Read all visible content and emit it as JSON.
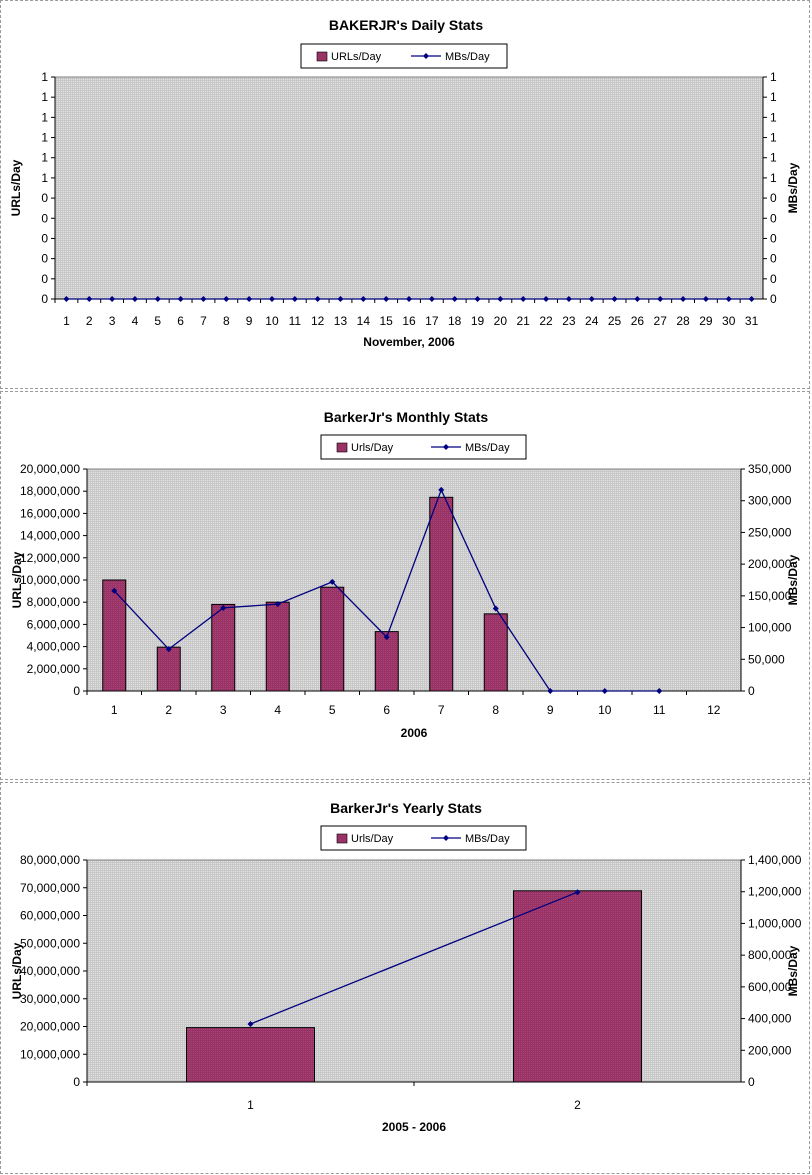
{
  "chart_data": [
    {
      "type": "bar",
      "title": "BAKERJR's Daily Stats",
      "xlabel": "November, 2006",
      "ylabel": "URLs/Day",
      "ylabel_right": "MBs/Day",
      "categories": [
        "1",
        "2",
        "3",
        "4",
        "5",
        "6",
        "7",
        "8",
        "9",
        "10",
        "11",
        "12",
        "13",
        "14",
        "15",
        "16",
        "17",
        "18",
        "19",
        "20",
        "21",
        "22",
        "23",
        "24",
        "25",
        "26",
        "27",
        "28",
        "29",
        "30",
        "31"
      ],
      "yticks": [
        "0",
        "0",
        "0",
        "0",
        "0",
        "0",
        "1",
        "1",
        "1",
        "1",
        "1",
        "1"
      ],
      "yticks_right": [
        "0",
        "0",
        "0",
        "0",
        "0",
        "0",
        "1",
        "1",
        "1",
        "1",
        "1",
        "1"
      ],
      "ylim": [
        0,
        1
      ],
      "ylim_right": [
        0,
        1
      ],
      "series": [
        {
          "name": "URLs/Day",
          "kind": "bar",
          "axis": "left",
          "color": "#993366",
          "values": [
            0,
            0,
            0,
            0,
            0,
            0,
            0,
            0,
            0,
            0,
            0,
            0,
            0,
            0,
            0,
            0,
            0,
            0,
            0,
            0,
            0,
            0,
            0,
            0,
            0,
            0,
            0,
            0,
            0,
            0,
            0
          ]
        },
        {
          "name": "MBs/Day",
          "kind": "line",
          "axis": "right",
          "color": "#000080",
          "values": [
            0,
            0,
            0,
            0,
            0,
            0,
            0,
            0,
            0,
            0,
            0,
            0,
            0,
            0,
            0,
            0,
            0,
            0,
            0,
            0,
            0,
            0,
            0,
            0,
            0,
            0,
            0,
            0,
            0,
            0,
            0
          ]
        }
      ],
      "grid": false,
      "legend": "top-center",
      "plot_bg": "#c8c8c8"
    },
    {
      "type": "bar",
      "title": "BarkerJr's Monthly Stats",
      "xlabel": "2006",
      "ylabel": "URLs/Day",
      "ylabel_right": "MBs/Day",
      "categories": [
        "1",
        "2",
        "3",
        "4",
        "5",
        "6",
        "7",
        "8",
        "9",
        "10",
        "11",
        "12"
      ],
      "yticks": [
        "0",
        "2,000,000",
        "4,000,000",
        "6,000,000",
        "8,000,000",
        "10,000,000",
        "12,000,000",
        "14,000,000",
        "16,000,000",
        "18,000,000",
        "20,000,000"
      ],
      "yticks_right": [
        "0",
        "50,000",
        "100,000",
        "150,000",
        "200,000",
        "250,000",
        "300,000",
        "350,000"
      ],
      "ylim": [
        0,
        20000000
      ],
      "ylim_right": [
        0,
        350000
      ],
      "series": [
        {
          "name": "Urls/Day",
          "kind": "bar",
          "axis": "left",
          "color": "#993366",
          "values": [
            10000000,
            3950000,
            7800000,
            8000000,
            9350000,
            5350000,
            17450000,
            6950000,
            null,
            null,
            null,
            null
          ]
        },
        {
          "name": "MBs/Day",
          "kind": "line",
          "axis": "right",
          "color": "#000080",
          "values": [
            158000,
            66000,
            131000,
            137000,
            172000,
            85000,
            317000,
            130000,
            0,
            0,
            0,
            null
          ]
        }
      ],
      "grid": false,
      "legend": "top-center",
      "plot_bg": "#c8c8c8"
    },
    {
      "type": "bar",
      "title": "BarkerJr's Yearly Stats",
      "xlabel": "2005 - 2006",
      "ylabel": "URLs/Day",
      "ylabel_right": "MBs/Day",
      "categories": [
        "1",
        "2"
      ],
      "yticks": [
        "0",
        "10,000,000",
        "20,000,000",
        "30,000,000",
        "40,000,000",
        "50,000,000",
        "60,000,000",
        "70,000,000",
        "80,000,000"
      ],
      "yticks_right": [
        "0",
        "200,000",
        "400,000",
        "600,000",
        "800,000",
        "1,000,000",
        "1,200,000",
        "1,400,000"
      ],
      "ylim": [
        0,
        80000000
      ],
      "ylim_right": [
        0,
        1400000
      ],
      "series": [
        {
          "name": "Urls/Day",
          "kind": "bar",
          "axis": "left",
          "color": "#993366",
          "values": [
            19600000,
            68900000
          ]
        },
        {
          "name": "MBs/Day",
          "kind": "line",
          "axis": "right",
          "color": "#000080",
          "values": [
            366000,
            1197000
          ]
        }
      ],
      "grid": false,
      "legend": "top-center",
      "plot_bg": "#c8c8c8"
    }
  ]
}
